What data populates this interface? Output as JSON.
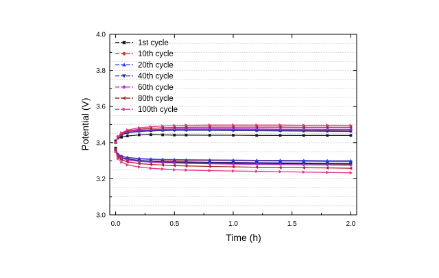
{
  "chart_data": {
    "type": "line",
    "title": "",
    "xlabel": "Time (h)",
    "ylabel": "Potential (V)",
    "xlim": [
      -0.05,
      2.05
    ],
    "ylim": [
      3.0,
      4.0
    ],
    "xticks": [
      0.0,
      0.5,
      1.0,
      1.5,
      2.0
    ],
    "xtick_labels": [
      "0.0",
      "0.5",
      "1.0",
      "1.5",
      "2.0"
    ],
    "yticks": [
      3.0,
      3.2,
      3.4,
      3.6,
      3.8,
      4.0
    ],
    "ytick_labels": [
      "3.0",
      "3.2",
      "3.4",
      "3.6",
      "3.8",
      "4.0"
    ],
    "grid": "horizontal dotted",
    "legend_position": "top-left",
    "x": [
      0.0,
      0.02,
      0.05,
      0.1,
      0.2,
      0.3,
      0.4,
      0.5,
      0.6,
      0.8,
      1.0,
      1.2,
      1.4,
      1.6,
      1.8,
      2.0
    ],
    "series": [
      {
        "name": "1st cycle",
        "color": "#1a1a1a",
        "marker": "square",
        "upper": [
          3.41,
          3.425,
          3.43,
          3.437,
          3.443,
          3.444,
          3.443,
          3.442,
          3.442,
          3.441,
          3.441,
          3.44,
          3.44,
          3.44,
          3.44,
          3.44
        ],
        "lower": [
          3.37,
          3.33,
          3.316,
          3.306,
          3.298,
          3.294,
          3.292,
          3.29,
          3.289,
          3.287,
          3.286,
          3.285,
          3.284,
          3.283,
          3.282,
          3.281
        ]
      },
      {
        "name": "10th cycle",
        "color": "#e8312a",
        "marker": "circle",
        "upper": [
          3.4,
          3.43,
          3.446,
          3.458,
          3.466,
          3.47,
          3.472,
          3.473,
          3.474,
          3.474,
          3.474,
          3.473,
          3.472,
          3.471,
          3.47,
          3.47
        ],
        "lower": [
          3.36,
          3.335,
          3.324,
          3.316,
          3.31,
          3.307,
          3.305,
          3.303,
          3.302,
          3.301,
          3.3,
          3.299,
          3.298,
          3.297,
          3.296,
          3.295
        ]
      },
      {
        "name": "20th cycle",
        "color": "#2f3fe0",
        "marker": "triangle",
        "upper": [
          3.4,
          3.43,
          3.445,
          3.456,
          3.464,
          3.467,
          3.469,
          3.47,
          3.47,
          3.47,
          3.469,
          3.468,
          3.467,
          3.466,
          3.465,
          3.464
        ],
        "lower": [
          3.36,
          3.335,
          3.325,
          3.318,
          3.312,
          3.309,
          3.307,
          3.306,
          3.305,
          3.304,
          3.303,
          3.302,
          3.302,
          3.301,
          3.3,
          3.3
        ]
      },
      {
        "name": "40th cycle",
        "color": "#25308f",
        "marker": "triangle-down",
        "upper": [
          3.4,
          3.428,
          3.443,
          3.454,
          3.462,
          3.465,
          3.467,
          3.468,
          3.468,
          3.468,
          3.467,
          3.466,
          3.465,
          3.464,
          3.463,
          3.462
        ],
        "lower": [
          3.36,
          3.33,
          3.318,
          3.309,
          3.302,
          3.298,
          3.296,
          3.294,
          3.293,
          3.291,
          3.29,
          3.289,
          3.288,
          3.287,
          3.286,
          3.285
        ]
      },
      {
        "name": "60th cycle",
        "color": "#b42ad6",
        "marker": "diamond",
        "upper": [
          3.4,
          3.43,
          3.447,
          3.459,
          3.468,
          3.472,
          3.474,
          3.476,
          3.477,
          3.477,
          3.477,
          3.476,
          3.475,
          3.475,
          3.474,
          3.474
        ],
        "lower": [
          3.36,
          3.328,
          3.314,
          3.304,
          3.296,
          3.292,
          3.289,
          3.287,
          3.285,
          3.283,
          3.281,
          3.28,
          3.279,
          3.277,
          3.276,
          3.275
        ]
      },
      {
        "name": "80th cycle",
        "color": "#a8232c",
        "marker": "triangle-left",
        "upper": [
          3.4,
          3.432,
          3.45,
          3.464,
          3.474,
          3.479,
          3.482,
          3.484,
          3.485,
          3.486,
          3.486,
          3.486,
          3.486,
          3.485,
          3.485,
          3.485
        ],
        "lower": [
          3.36,
          3.322,
          3.306,
          3.294,
          3.284,
          3.279,
          3.276,
          3.273,
          3.271,
          3.268,
          3.266,
          3.264,
          3.262,
          3.261,
          3.26,
          3.258
        ]
      },
      {
        "name": "100th cycle",
        "color": "#e0368c",
        "marker": "triangle-right",
        "upper": [
          3.4,
          3.434,
          3.454,
          3.47,
          3.482,
          3.488,
          3.492,
          3.494,
          3.496,
          3.497,
          3.497,
          3.497,
          3.497,
          3.496,
          3.496,
          3.495
        ],
        "lower": [
          3.35,
          3.312,
          3.292,
          3.277,
          3.265,
          3.258,
          3.254,
          3.25,
          3.248,
          3.245,
          3.243,
          3.241,
          3.239,
          3.237,
          3.235,
          3.233
        ]
      }
    ]
  }
}
